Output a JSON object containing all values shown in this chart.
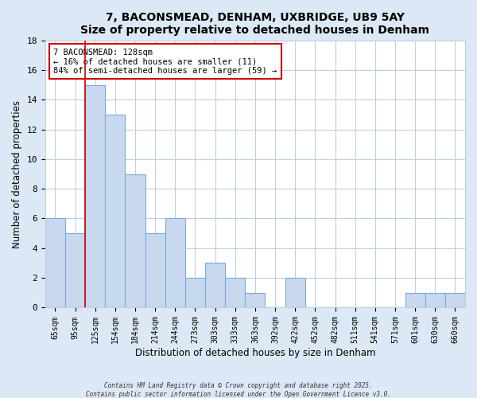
{
  "title": "7, BACONSMEAD, DENHAM, UXBRIDGE, UB9 5AY",
  "subtitle": "Size of property relative to detached houses in Denham",
  "xlabel": "Distribution of detached houses by size in Denham",
  "ylabel": "Number of detached properties",
  "categories": [
    "65sqm",
    "95sqm",
    "125sqm",
    "154sqm",
    "184sqm",
    "214sqm",
    "244sqm",
    "273sqm",
    "303sqm",
    "333sqm",
    "363sqm",
    "392sqm",
    "422sqm",
    "452sqm",
    "482sqm",
    "511sqm",
    "541sqm",
    "571sqm",
    "601sqm",
    "630sqm",
    "660sqm"
  ],
  "values": [
    6,
    5,
    15,
    13,
    9,
    5,
    6,
    2,
    3,
    2,
    1,
    0,
    2,
    0,
    0,
    0,
    0,
    0,
    1,
    1,
    1
  ],
  "bar_color": "#c8d8ee",
  "bar_edge_color": "#7bacd4",
  "vline_x_index": 2,
  "vline_color": "#cc0000",
  "annotation_text": "7 BACONSMEAD: 128sqm\n← 16% of detached houses are smaller (11)\n84% of semi-detached houses are larger (59) →",
  "annotation_box_color": "#ffffff",
  "annotation_box_edge": "#cc0000",
  "ylim": [
    0,
    18
  ],
  "yticks": [
    0,
    2,
    4,
    6,
    8,
    10,
    12,
    14,
    16,
    18
  ],
  "plot_bg_color": "#ffffff",
  "fig_bg_color": "#dce8f5",
  "grid_color": "#c0cfe0",
  "footer_line1": "Contains HM Land Registry data © Crown copyright and database right 2025.",
  "footer_line2": "Contains public sector information licensed under the Open Government Licence v3.0."
}
